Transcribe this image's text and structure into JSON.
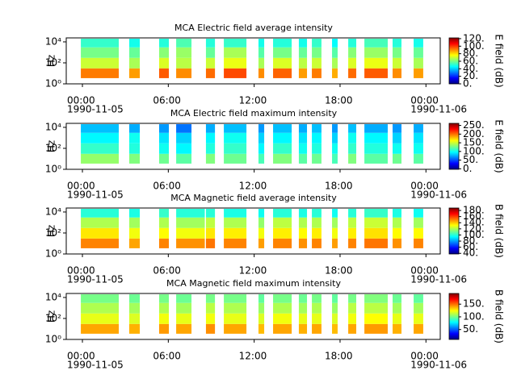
{
  "chart_data": [
    {
      "type": "heatmap",
      "title": "MCA  Electric field average intensity",
      "ylabel": "Hz",
      "colorbar_label": "E field (dB)",
      "colormap": "jet",
      "log_y": true,
      "xlim": [
        -1.13,
        25.0
      ],
      "xticks": [
        {
          "value": 0,
          "label": "00:00"
        },
        {
          "value": 6,
          "label": "06:00"
        },
        {
          "value": 12,
          "label": "12:00"
        },
        {
          "value": 18,
          "label": "18:00"
        },
        {
          "value": 24,
          "label": "00:00"
        }
      ],
      "xtick_dates": [
        {
          "value": 0,
          "label": "1990-11-05"
        },
        {
          "value": 24,
          "label": "1990-11-06"
        }
      ],
      "ylim": [
        1,
        24000
      ],
      "yticks": [
        {
          "value": 1,
          "label": "10⁰"
        },
        {
          "value": 100,
          "label": "10²"
        },
        {
          "value": 10000,
          "label": "10⁴"
        }
      ],
      "y_bins": [
        3.5,
        30,
        300,
        3000,
        20000
      ],
      "segments": [
        [
          -0.11,
          2.54
        ],
        [
          3.27,
          4.01
        ],
        [
          5.36,
          6.04
        ],
        [
          6.55,
          7.62
        ],
        [
          8.63,
          9.26
        ],
        [
          9.88,
          11.46
        ],
        [
          12.3,
          12.7
        ],
        [
          13.32,
          14.62
        ],
        [
          15.12,
          15.69
        ],
        [
          16.03,
          16.7
        ],
        [
          17.44,
          17.83
        ],
        [
          18.57,
          19.13
        ],
        [
          19.7,
          21.33
        ],
        [
          21.67,
          22.29
        ],
        [
          23.14,
          23.81
        ]
      ],
      "z": [
        [
          92,
          70,
          60,
          52
        ],
        [
          88,
          66,
          58,
          48
        ],
        [
          96,
          72,
          62,
          50
        ],
        [
          90,
          68,
          64,
          55
        ],
        [
          94,
          70,
          58,
          50
        ],
        [
          98,
          74,
          66,
          52
        ],
        [
          90,
          66,
          56,
          48
        ],
        [
          95,
          72,
          60,
          50
        ],
        [
          88,
          68,
          58,
          48
        ],
        [
          92,
          70,
          60,
          52
        ],
        [
          86,
          66,
          56,
          46
        ],
        [
          94,
          72,
          62,
          50
        ],
        [
          96,
          74,
          64,
          54
        ],
        [
          90,
          70,
          60,
          50
        ],
        [
          88,
          66,
          58,
          48
        ]
      ],
      "clim": [
        0,
        122
      ],
      "cticks": [
        {
          "value": 0,
          "label": "0."
        },
        {
          "value": 20,
          "label": "20."
        },
        {
          "value": 40,
          "label": "40."
        },
        {
          "value": 60,
          "label": "60."
        },
        {
          "value": 80,
          "label": "80."
        },
        {
          "value": 100,
          "label": "100."
        },
        {
          "value": 120,
          "label": "120."
        }
      ]
    },
    {
      "type": "heatmap",
      "title": "MCA  Electric field maximum intensity",
      "ylabel": "Hz",
      "colorbar_label": "E field (dB)",
      "colormap": "jet",
      "log_y": true,
      "xlim": [
        -1.13,
        25.0
      ],
      "xticks": [
        {
          "value": 0,
          "label": "00:00"
        },
        {
          "value": 6,
          "label": "06:00"
        },
        {
          "value": 12,
          "label": "12:00"
        },
        {
          "value": 18,
          "label": "18:00"
        },
        {
          "value": 24,
          "label": "00:00"
        }
      ],
      "xtick_dates": [
        {
          "value": 0,
          "label": "1990-11-05"
        },
        {
          "value": 24,
          "label": "1990-11-06"
        }
      ],
      "ylim": [
        1,
        24000
      ],
      "yticks": [
        {
          "value": 1,
          "label": "10⁰"
        },
        {
          "value": 100,
          "label": "10²"
        },
        {
          "value": 10000,
          "label": "10⁴"
        }
      ],
      "y_bins": [
        3.5,
        30,
        300,
        3000,
        20000
      ],
      "segments": [
        [
          -0.11,
          2.54
        ],
        [
          3.27,
          4.01
        ],
        [
          5.36,
          6.04
        ],
        [
          6.55,
          7.62
        ],
        [
          8.63,
          9.26
        ],
        [
          9.88,
          11.46
        ],
        [
          12.3,
          12.7
        ],
        [
          13.32,
          14.62
        ],
        [
          15.12,
          15.69
        ],
        [
          16.03,
          16.7
        ],
        [
          17.44,
          17.83
        ],
        [
          18.57,
          19.13
        ],
        [
          19.7,
          21.33
        ],
        [
          21.67,
          22.29
        ],
        [
          23.14,
          23.81
        ]
      ],
      "z": [
        [
          135,
          110,
          95,
          80
        ],
        [
          130,
          105,
          100,
          75
        ],
        [
          125,
          100,
          90,
          70
        ],
        [
          120,
          95,
          85,
          60
        ],
        [
          130,
          105,
          95,
          75
        ],
        [
          125,
          110,
          100,
          80
        ],
        [
          115,
          95,
          85,
          70
        ],
        [
          130,
          110,
          95,
          80
        ],
        [
          120,
          100,
          90,
          75
        ],
        [
          125,
          105,
          95,
          80
        ],
        [
          115,
          100,
          85,
          70
        ],
        [
          130,
          110,
          100,
          80
        ],
        [
          120,
          105,
          95,
          75
        ],
        [
          125,
          100,
          85,
          70
        ],
        [
          120,
          100,
          90,
          75
        ]
      ],
      "clim": [
        -3,
        262
      ],
      "cticks": [
        {
          "value": 0,
          "label": "0."
        },
        {
          "value": 50,
          "label": "50."
        },
        {
          "value": 100,
          "label": "100."
        },
        {
          "value": 150,
          "label": "150."
        },
        {
          "value": 200,
          "label": "200."
        },
        {
          "value": 250,
          "label": "250."
        }
      ]
    },
    {
      "type": "heatmap",
      "title": "MCA  Magnetic field average intensity",
      "ylabel": "Hz",
      "colorbar_label": "B field (dB)",
      "colormap": "jet",
      "log_y": true,
      "xlim": [
        -1.13,
        25.0
      ],
      "xticks": [
        {
          "value": 0,
          "label": "00:00"
        },
        {
          "value": 6,
          "label": "06:00"
        },
        {
          "value": 12,
          "label": "12:00"
        },
        {
          "value": 18,
          "label": "18:00"
        },
        {
          "value": 24,
          "label": "00:00"
        }
      ],
      "xtick_dates": [
        {
          "value": 0,
          "label": "1990-11-05"
        },
        {
          "value": 24,
          "label": "1990-11-06"
        }
      ],
      "ylim": [
        1,
        24000
      ],
      "yticks": [
        {
          "value": 1,
          "label": "10⁰"
        },
        {
          "value": 100,
          "label": "10²"
        },
        {
          "value": 10000,
          "label": "10⁴"
        }
      ],
      "y_bins": [
        3.5,
        30,
        300,
        3000,
        20000
      ],
      "segments": [
        [
          -0.11,
          2.54
        ],
        [
          3.27,
          4.01
        ],
        [
          5.36,
          6.04
        ],
        [
          6.55,
          8.55
        ],
        [
          8.63,
          9.26
        ],
        [
          9.88,
          11.46
        ],
        [
          12.3,
          12.7
        ],
        [
          13.32,
          14.62
        ],
        [
          15.12,
          15.69
        ],
        [
          16.03,
          16.7
        ],
        [
          17.44,
          17.83
        ],
        [
          18.57,
          19.13
        ],
        [
          19.7,
          21.33
        ],
        [
          21.67,
          22.29
        ],
        [
          23.14,
          23.81
        ]
      ],
      "z": [
        [
          150,
          135,
          120,
          100
        ],
        [
          145,
          130,
          118,
          98
        ],
        [
          150,
          132,
          120,
          102
        ],
        [
          148,
          130,
          118,
          100
        ],
        [
          152,
          135,
          122,
          100
        ],
        [
          150,
          134,
          120,
          98
        ],
        [
          146,
          130,
          116,
          96
        ],
        [
          150,
          134,
          122,
          100
        ],
        [
          148,
          132,
          120,
          98
        ],
        [
          150,
          134,
          120,
          100
        ],
        [
          146,
          130,
          118,
          96
        ],
        [
          150,
          134,
          122,
          100
        ],
        [
          152,
          136,
          124,
          102
        ],
        [
          148,
          132,
          120,
          98
        ],
        [
          150,
          132,
          118,
          96
        ]
      ],
      "clim": [
        38,
        188
      ],
      "cticks": [
        {
          "value": 40,
          "label": "40."
        },
        {
          "value": 60,
          "label": "60."
        },
        {
          "value": 80,
          "label": "80."
        },
        {
          "value": 100,
          "label": "100."
        },
        {
          "value": 120,
          "label": "120."
        },
        {
          "value": 140,
          "label": "140."
        },
        {
          "value": 160,
          "label": "160."
        },
        {
          "value": 180,
          "label": "180."
        }
      ]
    },
    {
      "type": "heatmap",
      "title": "MCA  Magnetic field maximum intensity",
      "ylabel": "Hz",
      "colorbar_label": "B field (dB)",
      "colormap": "jet",
      "log_y": true,
      "xlim": [
        -1.13,
        25.0
      ],
      "xticks": [
        {
          "value": 0,
          "label": "00:00"
        },
        {
          "value": 6,
          "label": "06:00"
        },
        {
          "value": 12,
          "label": "12:00"
        },
        {
          "value": 18,
          "label": "18:00"
        },
        {
          "value": 24,
          "label": "00:00"
        }
      ],
      "xtick_dates": [
        {
          "value": 0,
          "label": "1990-11-05"
        },
        {
          "value": 24,
          "label": "1990-11-06"
        }
      ],
      "ylim": [
        1,
        24000
      ],
      "yticks": [
        {
          "value": 1,
          "label": "10⁰"
        },
        {
          "value": 100,
          "label": "10²"
        },
        {
          "value": 10000,
          "label": "10⁴"
        }
      ],
      "y_bins": [
        3.5,
        30,
        300,
        3000,
        20000
      ],
      "segments": [
        [
          -0.11,
          2.54
        ],
        [
          3.27,
          4.01
        ],
        [
          5.36,
          6.04
        ],
        [
          6.55,
          7.62
        ],
        [
          8.63,
          9.26
        ],
        [
          9.88,
          11.46
        ],
        [
          12.3,
          12.7
        ],
        [
          13.32,
          14.62
        ],
        [
          15.12,
          15.69
        ],
        [
          16.03,
          16.7
        ],
        [
          17.44,
          17.83
        ],
        [
          18.57,
          19.13
        ],
        [
          19.7,
          21.33
        ],
        [
          21.67,
          22.29
        ],
        [
          23.14,
          23.81
        ]
      ],
      "z": [
        [
          140,
          120,
          110,
          100
        ],
        [
          138,
          118,
          108,
          98
        ],
        [
          142,
          122,
          110,
          100
        ],
        [
          140,
          120,
          108,
          98
        ],
        [
          144,
          122,
          112,
          100
        ],
        [
          140,
          120,
          110,
          100
        ],
        [
          136,
          118,
          106,
          96
        ],
        [
          140,
          122,
          110,
          100
        ],
        [
          138,
          120,
          108,
          98
        ],
        [
          140,
          120,
          110,
          100
        ],
        [
          136,
          118,
          106,
          96
        ],
        [
          140,
          122,
          112,
          100
        ],
        [
          142,
          124,
          112,
          102
        ],
        [
          138,
          120,
          108,
          98
        ],
        [
          140,
          120,
          108,
          96
        ]
      ],
      "clim": [
        11,
        192
      ],
      "cticks": [
        {
          "value": 50,
          "label": "50."
        },
        {
          "value": 100,
          "label": "100."
        },
        {
          "value": 150,
          "label": "150."
        }
      ]
    }
  ]
}
